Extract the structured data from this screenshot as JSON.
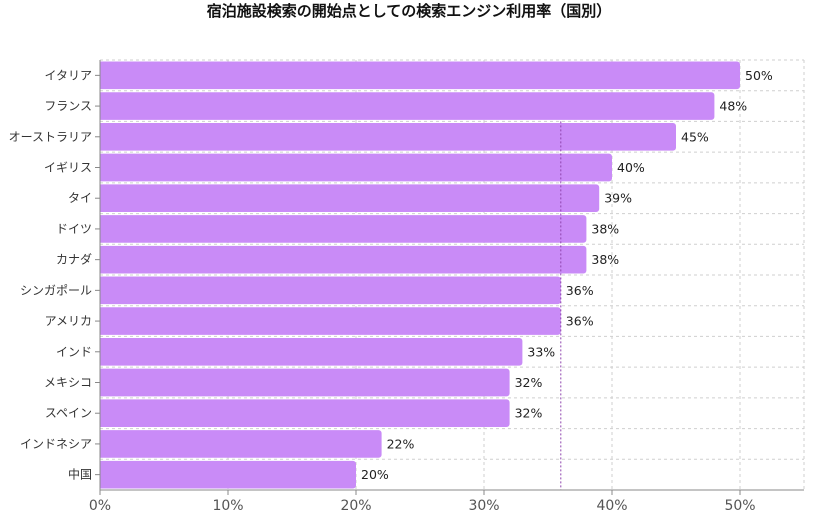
{
  "chart_data": {
    "type": "bar",
    "orientation": "horizontal",
    "title": "宿泊施設検索の開始点としての検索エンジン利用率（国別）",
    "xlabel": "",
    "ylabel": "",
    "categories": [
      "イタリア",
      "フランス",
      "オーストラリア",
      "イギリス",
      "タイ",
      "ドイツ",
      "カナダ",
      "シンガポール",
      "アメリカ",
      "インド",
      "メキシコ",
      "スペイン",
      "インドネシア",
      "中国"
    ],
    "values": [
      50,
      48,
      45,
      40,
      39,
      38,
      38,
      36,
      36,
      33,
      32,
      32,
      22,
      20
    ],
    "value_labels": [
      "50%",
      "48%",
      "45%",
      "40%",
      "39%",
      "38%",
      "38%",
      "36%",
      "36%",
      "33%",
      "32%",
      "32%",
      "22%",
      "20%"
    ],
    "xlim": [
      0,
      55
    ],
    "x_ticks": [
      0,
      10,
      20,
      30,
      40,
      50
    ],
    "x_tick_labels": [
      "0%",
      "10%",
      "20%",
      "30%",
      "40%",
      "50%"
    ],
    "reference_line": 36,
    "grid": true,
    "legend": "none",
    "bar_color": "#c98bf7",
    "reference_line_color": "#8e44ad"
  }
}
